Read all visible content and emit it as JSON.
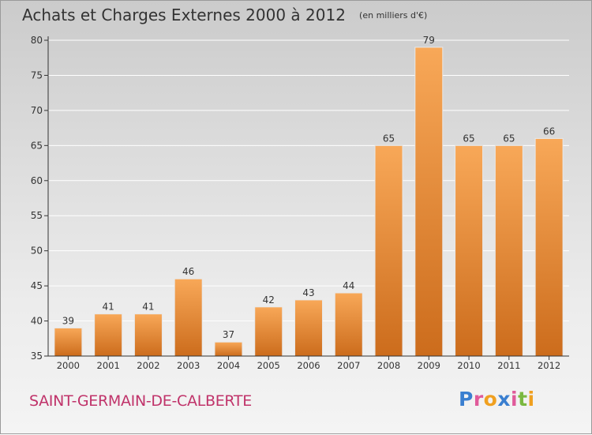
{
  "chart_data": {
    "type": "bar",
    "title": "Achats et Charges Externes 2000 à 2012",
    "subtitle": "(en milliers d'€)",
    "categories": [
      "2000",
      "2001",
      "2002",
      "2003",
      "2004",
      "2005",
      "2006",
      "2007",
      "2008",
      "2009",
      "2010",
      "2011",
      "2012"
    ],
    "values": [
      39,
      41,
      41,
      46,
      37,
      42,
      43,
      44,
      65,
      79,
      65,
      65,
      66
    ],
    "ylim": [
      35,
      80
    ],
    "yticks": [
      35,
      40,
      45,
      50,
      55,
      60,
      65,
      70,
      75,
      80
    ],
    "grid": true,
    "legend": "none"
  },
  "place_name": "SAINT-GERMAIN-DE-CALBERTE",
  "logo": {
    "text": "Proxiti",
    "letters": [
      {
        "ch": "P",
        "color": "#3a7fd0"
      },
      {
        "ch": "r",
        "color": "#e05a9a"
      },
      {
        "ch": "o",
        "color": "#f0a020"
      },
      {
        "ch": "x",
        "color": "#3a7fd0"
      },
      {
        "ch": "i",
        "color": "#e05a9a"
      },
      {
        "ch": "t",
        "color": "#7ab840"
      },
      {
        "ch": "i",
        "color": "#f0a020"
      }
    ]
  },
  "colors": {
    "bar_light": "#f8a858",
    "bar_dark": "#cc6c1c",
    "axis": "#333333",
    "grid": "#ffffff",
    "place": "#c0336a"
  }
}
